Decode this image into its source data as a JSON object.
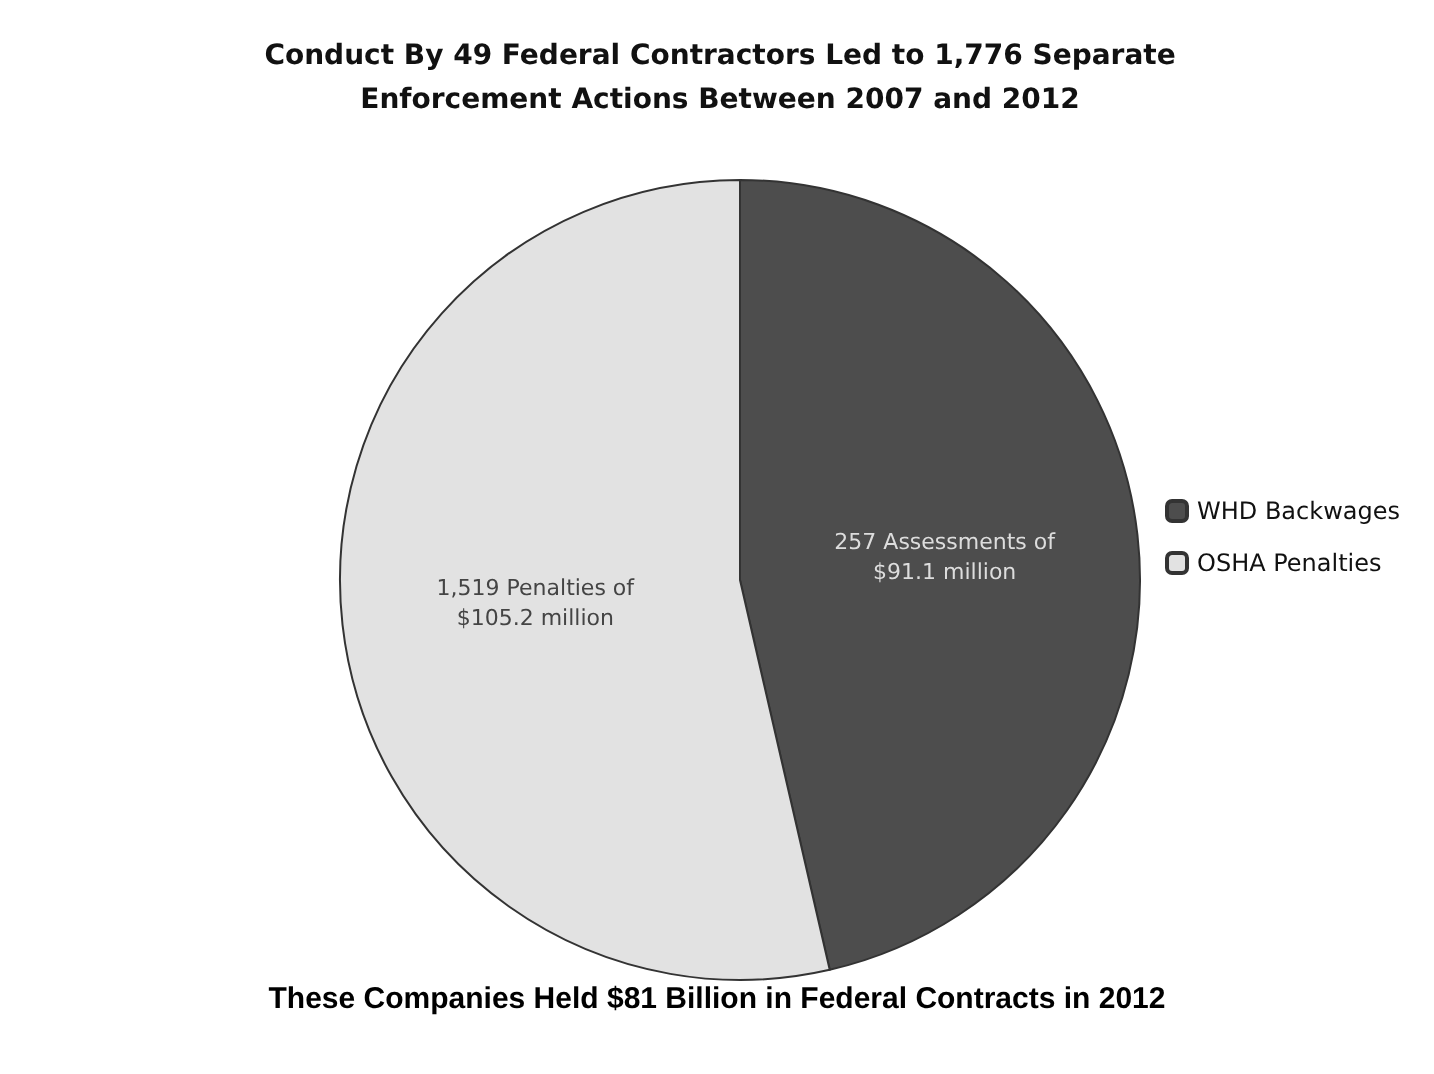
{
  "chart_data": {
    "type": "pie",
    "title": "Conduct By 49 Federal Contractors Led to 1,776 Separate Enforcement Actions Between 2007 and 2012",
    "categories": [
      "WHD Backwages",
      "OSHA Penalties"
    ],
    "values": [
      46.4,
      53.6
    ],
    "colors": [
      "#4d4d4d",
      "#e2e2e2"
    ],
    "legend": "right",
    "annotations": [
      {
        "text": "257 Assessments of $91.1 million",
        "x": "WHD Backwages"
      },
      {
        "text": "1,519 Penalties of $105.2 million",
        "x": "OSHA Penalties"
      },
      "These Companies Held $81 Billion in Federal Contracts in 2012"
    ]
  }
}
